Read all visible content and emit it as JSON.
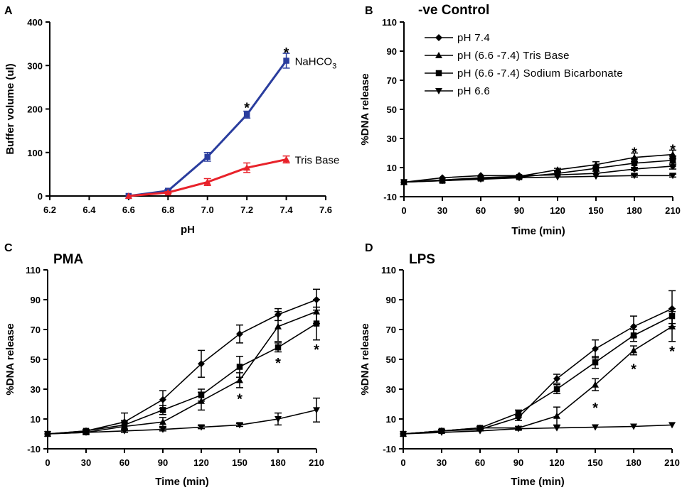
{
  "chart_data": [
    {
      "id": "A",
      "panel_letter": "A",
      "type": "line",
      "title": "",
      "xlabel": "pH",
      "ylabel": "Buffer volume (ul)",
      "xlim": [
        6.2,
        7.6
      ],
      "ylim": [
        0,
        400
      ],
      "x_ticks": [
        "6.2",
        "6.4",
        "6.6",
        "6.8",
        "7.0",
        "7.2",
        "7.4",
        "7.6"
      ],
      "y_ticks": [
        "0",
        "100",
        "200",
        "300",
        "400"
      ],
      "series": [
        {
          "name": "NaHCO3",
          "label_main": "NaHCO",
          "label_sub": "3",
          "color": "#2a3d9e",
          "marker": "square",
          "x": [
            6.6,
            6.8,
            7.0,
            7.2,
            7.4
          ],
          "y": [
            0,
            12,
            90,
            187,
            311
          ],
          "err": [
            0,
            3,
            10,
            8,
            17
          ]
        },
        {
          "name": "Tris Base",
          "label_main": "Tris Base",
          "label_sub": "",
          "color": "#e8222a",
          "marker": "triangle-up",
          "x": [
            6.6,
            6.8,
            7.0,
            7.2,
            7.4
          ],
          "y": [
            0,
            8,
            32,
            65,
            84
          ],
          "err": [
            0,
            2,
            8,
            11,
            8
          ]
        }
      ],
      "annotations": [
        {
          "text": "*",
          "x": 7.2,
          "y": 208
        },
        {
          "text": "*",
          "x": 7.4,
          "y": 335
        }
      ]
    },
    {
      "id": "B",
      "panel_letter": "B",
      "type": "line",
      "title": "-ve Control",
      "xlabel": "Time (min)",
      "ylabel": "%DNA release",
      "xlim": [
        0,
        210
      ],
      "ylim": [
        -10,
        110
      ],
      "x_ticks": [
        "0",
        "30",
        "60",
        "90",
        "120",
        "150",
        "180",
        "210"
      ],
      "y_ticks": [
        "-10",
        "10",
        "30",
        "50",
        "70",
        "90",
        "110"
      ],
      "legend": [
        {
          "label": "pH 7.4",
          "marker": "diamond"
        },
        {
          "label": "pH (6.6 -7.4) Tris Base",
          "marker": "triangle-up"
        },
        {
          "label": "pH (6.6 -7.4) Sodium Bicarbonate",
          "marker": "square"
        },
        {
          "label": "pH 6.6",
          "marker": "triangle-down"
        }
      ],
      "series": [
        {
          "name": "pH 7.4",
          "marker": "diamond",
          "x": [
            0,
            30,
            60,
            90,
            120,
            150,
            180,
            210
          ],
          "y": [
            0,
            3,
            4.5,
            4.5,
            5,
            6,
            9,
            11
          ],
          "err": [
            0,
            0,
            0,
            0,
            0,
            0,
            1,
            2
          ]
        },
        {
          "name": "pH (6.6 -7.4) Tris Base",
          "marker": "triangle-up",
          "x": [
            0,
            30,
            60,
            90,
            120,
            150,
            180,
            210
          ],
          "y": [
            0,
            1.5,
            3,
            4,
            8.5,
            12,
            17,
            19
          ],
          "err": [
            0,
            0,
            0,
            0,
            1,
            2,
            3,
            3
          ]
        },
        {
          "name": "pH (6.6 -7.4) Sodium Bicarbonate",
          "marker": "square",
          "x": [
            0,
            30,
            60,
            90,
            120,
            150,
            180,
            210
          ],
          "y": [
            0,
            1,
            2.5,
            3.5,
            6,
            9.5,
            13,
            15
          ],
          "err": [
            0,
            0,
            0,
            0,
            1,
            2,
            3,
            3
          ]
        },
        {
          "name": "pH 6.6",
          "marker": "triangle-down",
          "x": [
            0,
            30,
            60,
            90,
            120,
            150,
            180,
            210
          ],
          "y": [
            0,
            1,
            2,
            3,
            3.5,
            4,
            4.5,
            4.5
          ],
          "err": [
            0,
            0,
            0,
            0,
            0,
            0,
            1,
            1
          ]
        }
      ],
      "annotations": [
        {
          "text": "*",
          "x": 180,
          "y": 22
        },
        {
          "text": "*",
          "x": 210,
          "y": 24
        }
      ]
    },
    {
      "id": "C",
      "panel_letter": "C",
      "type": "line",
      "title": "PMA",
      "xlabel": "Time (min)",
      "ylabel": "%DNA release",
      "xlim": [
        0,
        210
      ],
      "ylim": [
        -10,
        110
      ],
      "x_ticks": [
        "0",
        "30",
        "60",
        "90",
        "120",
        "150",
        "180",
        "210"
      ],
      "y_ticks": [
        "-10",
        "10",
        "30",
        "50",
        "70",
        "90",
        "110"
      ],
      "series": [
        {
          "name": "pH 7.4",
          "marker": "diamond",
          "x": [
            0,
            30,
            60,
            90,
            120,
            150,
            180,
            210
          ],
          "y": [
            0,
            2,
            8,
            23,
            47,
            67,
            80,
            90
          ],
          "err": [
            0,
            1,
            6,
            6,
            9,
            6,
            4,
            7
          ]
        },
        {
          "name": "pH (6.6 -7.4) Tris Base",
          "marker": "triangle-up",
          "x": [
            0,
            30,
            60,
            90,
            120,
            150,
            180,
            210
          ],
          "y": [
            0,
            1,
            5,
            8,
            22,
            36,
            72,
            82
          ],
          "err": [
            0,
            1,
            3,
            3,
            6,
            5,
            10,
            8
          ]
        },
        {
          "name": "pH (6.6 -7.4) Sodium Bicarbonate",
          "marker": "square",
          "x": [
            0,
            30,
            60,
            90,
            120,
            150,
            180,
            210
          ],
          "y": [
            0,
            2,
            6,
            16,
            26,
            45,
            58,
            74
          ],
          "err": [
            0,
            1,
            3,
            3,
            4,
            7,
            3,
            11
          ]
        },
        {
          "name": "pH 6.6",
          "marker": "triangle-down",
          "x": [
            0,
            30,
            60,
            90,
            120,
            150,
            180,
            210
          ],
          "y": [
            0,
            1,
            2,
            3,
            4.5,
            6,
            10,
            16
          ],
          "err": [
            0,
            0,
            1,
            1,
            1,
            1,
            4,
            8
          ]
        }
      ],
      "annotations": [
        {
          "text": "*",
          "x": 150,
          "y": 25
        },
        {
          "text": "*",
          "x": 180,
          "y": 49
        },
        {
          "text": "*",
          "x": 210,
          "y": 58
        }
      ]
    },
    {
      "id": "D",
      "panel_letter": "D",
      "type": "line",
      "title": "LPS",
      "xlabel": "Time (min)",
      "ylabel": "%DNA release",
      "xlim": [
        0,
        210
      ],
      "ylim": [
        -10,
        110
      ],
      "x_ticks": [
        "0",
        "30",
        "60",
        "90",
        "120",
        "150",
        "180",
        "210"
      ],
      "y_ticks": [
        "-10",
        "10",
        "30",
        "50",
        "70",
        "90",
        "110"
      ],
      "series": [
        {
          "name": "pH 7.4",
          "marker": "diamond",
          "x": [
            0,
            30,
            60,
            90,
            120,
            150,
            180,
            210
          ],
          "y": [
            0,
            2,
            3,
            11,
            37,
            57,
            72,
            84
          ],
          "err": [
            0,
            1,
            1,
            2,
            3,
            6,
            7,
            12
          ]
        },
        {
          "name": "pH (6.6 -7.4) Tris Base",
          "marker": "triangle-up",
          "x": [
            0,
            30,
            60,
            90,
            120,
            150,
            180,
            210
          ],
          "y": [
            0,
            2,
            4,
            4,
            12,
            33,
            56,
            72
          ],
          "err": [
            0,
            1,
            1,
            1,
            6,
            4,
            3,
            10
          ]
        },
        {
          "name": "pH (6.6 -7.4) Sodium Bicarbonate",
          "marker": "square",
          "x": [
            0,
            30,
            60,
            90,
            120,
            150,
            180,
            210
          ],
          "y": [
            0,
            2,
            4,
            14,
            30,
            48,
            66,
            79
          ],
          "err": [
            0,
            1,
            1,
            2,
            3,
            4,
            4,
            5
          ]
        },
        {
          "name": "pH 6.6",
          "marker": "triangle-down",
          "x": [
            0,
            30,
            60,
            90,
            120,
            150,
            180,
            210
          ],
          "y": [
            0,
            1,
            2,
            3.5,
            4,
            4.5,
            5,
            6
          ],
          "err": [
            0,
            0,
            0,
            0,
            0,
            0,
            0,
            0
          ]
        }
      ],
      "annotations": [
        {
          "text": "*",
          "x": 150,
          "y": 19
        },
        {
          "text": "*",
          "x": 180,
          "y": 45
        },
        {
          "text": "*",
          "x": 210,
          "y": 57
        }
      ]
    }
  ]
}
